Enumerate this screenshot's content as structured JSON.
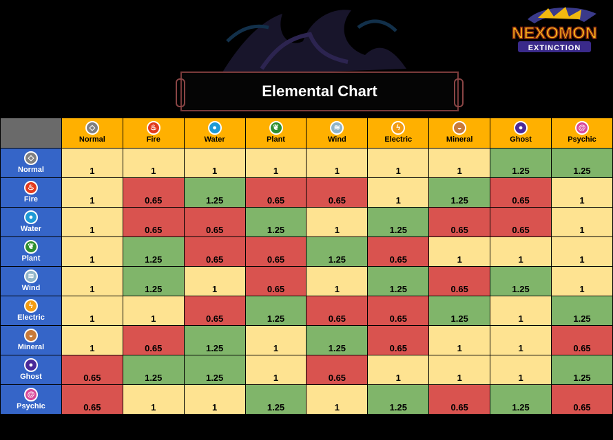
{
  "logo": {
    "line1": "NEXOMON",
    "line2": "EXTINCTION"
  },
  "title": "Elemental Chart",
  "colors": {
    "neutral": "#fee391",
    "strong": "#80b56a",
    "weak": "#d9534f",
    "header_col": "#ffb000",
    "header_row": "#3565c8"
  },
  "icons": {
    "Normal": {
      "name": "normal-icon",
      "glyph": "◇",
      "color": "#808080"
    },
    "Fire": {
      "name": "fire-icon",
      "glyph": "♨",
      "color": "#e23a1c"
    },
    "Water": {
      "name": "water-icon",
      "glyph": "●",
      "color": "#1e9ad6"
    },
    "Plant": {
      "name": "leaf-icon",
      "glyph": "❦",
      "color": "#2f8f2f"
    },
    "Wind": {
      "name": "wind-icon",
      "glyph": "≋",
      "color": "#8fb4c8"
    },
    "Electric": {
      "name": "lightning-icon",
      "glyph": "ϟ",
      "color": "#f39c12"
    },
    "Mineral": {
      "name": "rock-icon",
      "glyph": "◒",
      "color": "#c87a3a"
    },
    "Ghost": {
      "name": "ghost-icon",
      "glyph": "●",
      "color": "#4a2a9a"
    },
    "Psychic": {
      "name": "spiral-icon",
      "glyph": "@",
      "color": "#d7489a"
    }
  },
  "chart_data": {
    "type": "table",
    "title": "Elemental Chart",
    "columns": [
      "Normal",
      "Fire",
      "Water",
      "Plant",
      "Wind",
      "Electric",
      "Mineral",
      "Ghost",
      "Psychic"
    ],
    "rows": [
      "Normal",
      "Fire",
      "Water",
      "Plant",
      "Wind",
      "Electric",
      "Mineral",
      "Ghost",
      "Psychic"
    ],
    "values": [
      [
        "1",
        "1",
        "1",
        "1",
        "1",
        "1",
        "1",
        "1.25",
        "1.25"
      ],
      [
        "1",
        "0.65",
        "1.25",
        "0.65",
        "0.65",
        "1",
        "1.25",
        "0.65",
        "1"
      ],
      [
        "1",
        "0.65",
        "0.65",
        "1.25",
        "1",
        "1.25",
        "0.65",
        "0.65",
        "1"
      ],
      [
        "1",
        "1.25",
        "0.65",
        "0.65",
        "1.25",
        "0.65",
        "1",
        "1",
        "1"
      ],
      [
        "1",
        "1.25",
        "1",
        "0.65",
        "1",
        "1.25",
        "0.65",
        "1.25",
        "1"
      ],
      [
        "1",
        "1",
        "0.65",
        "1.25",
        "0.65",
        "0.65",
        "1.25",
        "1",
        "1.25"
      ],
      [
        "1",
        "0.65",
        "1.25",
        "1",
        "1.25",
        "0.65",
        "1",
        "1",
        "0.65"
      ],
      [
        "0.65",
        "1.25",
        "1.25",
        "1",
        "0.65",
        "1",
        "1",
        "1",
        "1.25"
      ],
      [
        "0.65",
        "1",
        "1",
        "1.25",
        "1",
        "1.25",
        "0.65",
        "1.25",
        "0.65"
      ]
    ]
  }
}
